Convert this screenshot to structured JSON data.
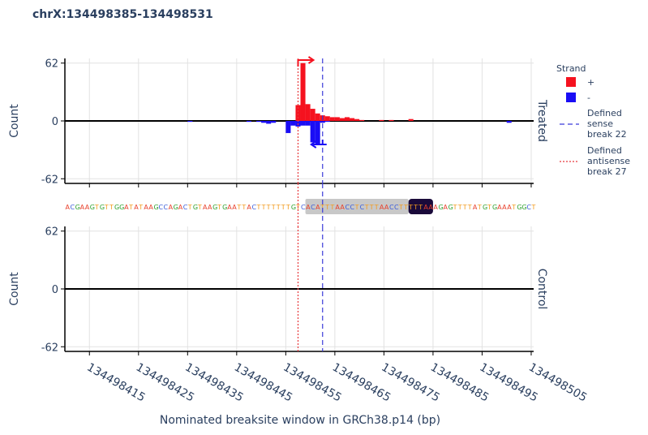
{
  "chart_data": {
    "type": "bar",
    "title": "chrX:134498385-134498531",
    "x_label": "Nominated breaksite window in GRCh38.p14 (bp)",
    "xlim": [
      134498410,
      134498505.5
    ],
    "xticks": [
      134498415,
      134498425,
      134498435,
      134498445,
      134498455,
      134498465,
      134498475,
      134498485,
      134498495,
      134498505
    ],
    "grid": true,
    "legend_title": "Strand",
    "legend_position": "right",
    "panels": [
      {
        "label": "Treated",
        "y_label": "Count",
        "ylim": [
          -67,
          67
        ],
        "yticks": [
          -62,
          0,
          62
        ],
        "series": [
          {
            "name": "+",
            "color": "#f5121f",
            "x": [
              134498457,
              134498458,
              134498459,
              134498460,
              134498461,
              134498462,
              134498463,
              134498464,
              134498465,
              134498466,
              134498467,
              134498468,
              134498469,
              134498470,
              134498474,
              134498476,
              134498480
            ],
            "values": [
              17,
              62,
              18,
              13,
              8,
              6,
              5,
              4,
              4,
              3,
              4,
              3,
              2,
              1,
              1,
              1,
              2
            ]
          },
          {
            "name": "-",
            "color": "#1a0df5",
            "x": [
              134498435,
              134498447,
              134498449,
              134498450,
              134498451,
              134498452,
              134498455,
              134498456,
              134498457,
              134498458,
              134498459,
              134498460,
              134498461,
              134498462,
              134498463,
              134498500
            ],
            "values": [
              -1,
              -1,
              -1,
              -2,
              -3,
              -2,
              -13,
              -5,
              -6,
              -5,
              -5,
              -23,
              -25,
              -2,
              -1,
              -2
            ]
          }
        ]
      },
      {
        "label": "Control",
        "y_label": "Count",
        "ylim": [
          -67,
          67
        ],
        "yticks": [
          -62,
          0,
          62
        ]
      }
    ],
    "vlines": [
      {
        "name": "Defined sense break 22",
        "x": 134498462.5,
        "color": "#3b3bd9",
        "dash": "6,4"
      },
      {
        "name": "Defined antisense break 27",
        "x": 134498457.5,
        "color": "#e8383c",
        "dash": "2,2"
      }
    ],
    "sequence": {
      "start": 134498410,
      "bases": "ACGAAGTGTTGGATATAAGCCAGACTGTAAGTGAATTACTTTTTTTGTCACATTTAACCTCTTTAACCTTTTTAAAGAGTTTTATGTGAAATGGCT",
      "colors": {
        "A": "#e8412c",
        "C": "#3a5bd9",
        "G": "#2ca02c",
        "T": "#f29b1f"
      },
      "highlights": [
        {
          "start": 134498459,
          "end": 134498480,
          "color": "#c8c8c8"
        },
        {
          "start": 134498480,
          "end": 134498485,
          "color": "#1a0a3a"
        }
      ]
    }
  }
}
